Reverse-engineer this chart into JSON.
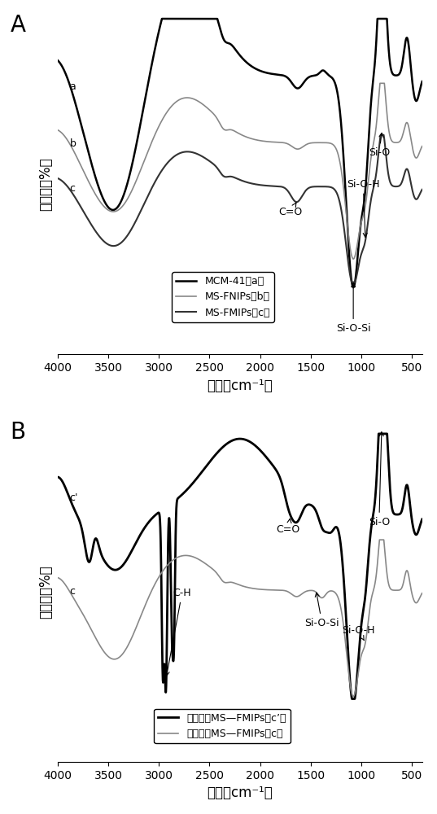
{
  "panel_A_label": "A",
  "panel_B_label": "B",
  "xlabel": "波数（cm⁻¹）",
  "ylabel": "透射率（%）",
  "xmin": 4000,
  "xmax": 400,
  "xticks": [
    4000,
    3500,
    3000,
    2500,
    2000,
    1500,
    1000,
    500
  ],
  "background_color": "#ffffff",
  "legend_A_labels": [
    "MCM-41（a）",
    "MS-FNIPs（b）",
    "MS-FMIPs（c）"
  ],
  "legend_A_colors": [
    "#000000",
    "#888888",
    "#333333"
  ],
  "legend_A_lws": [
    1.8,
    1.2,
    1.5
  ],
  "legend_B_labels": [
    "洗脱前的MS—FMIPs（c’）",
    "洗脱后的MS—FMIPs（c）"
  ],
  "legend_B_colors": [
    "#000000",
    "#888888"
  ],
  "legend_B_lws": [
    2.0,
    1.2
  ]
}
